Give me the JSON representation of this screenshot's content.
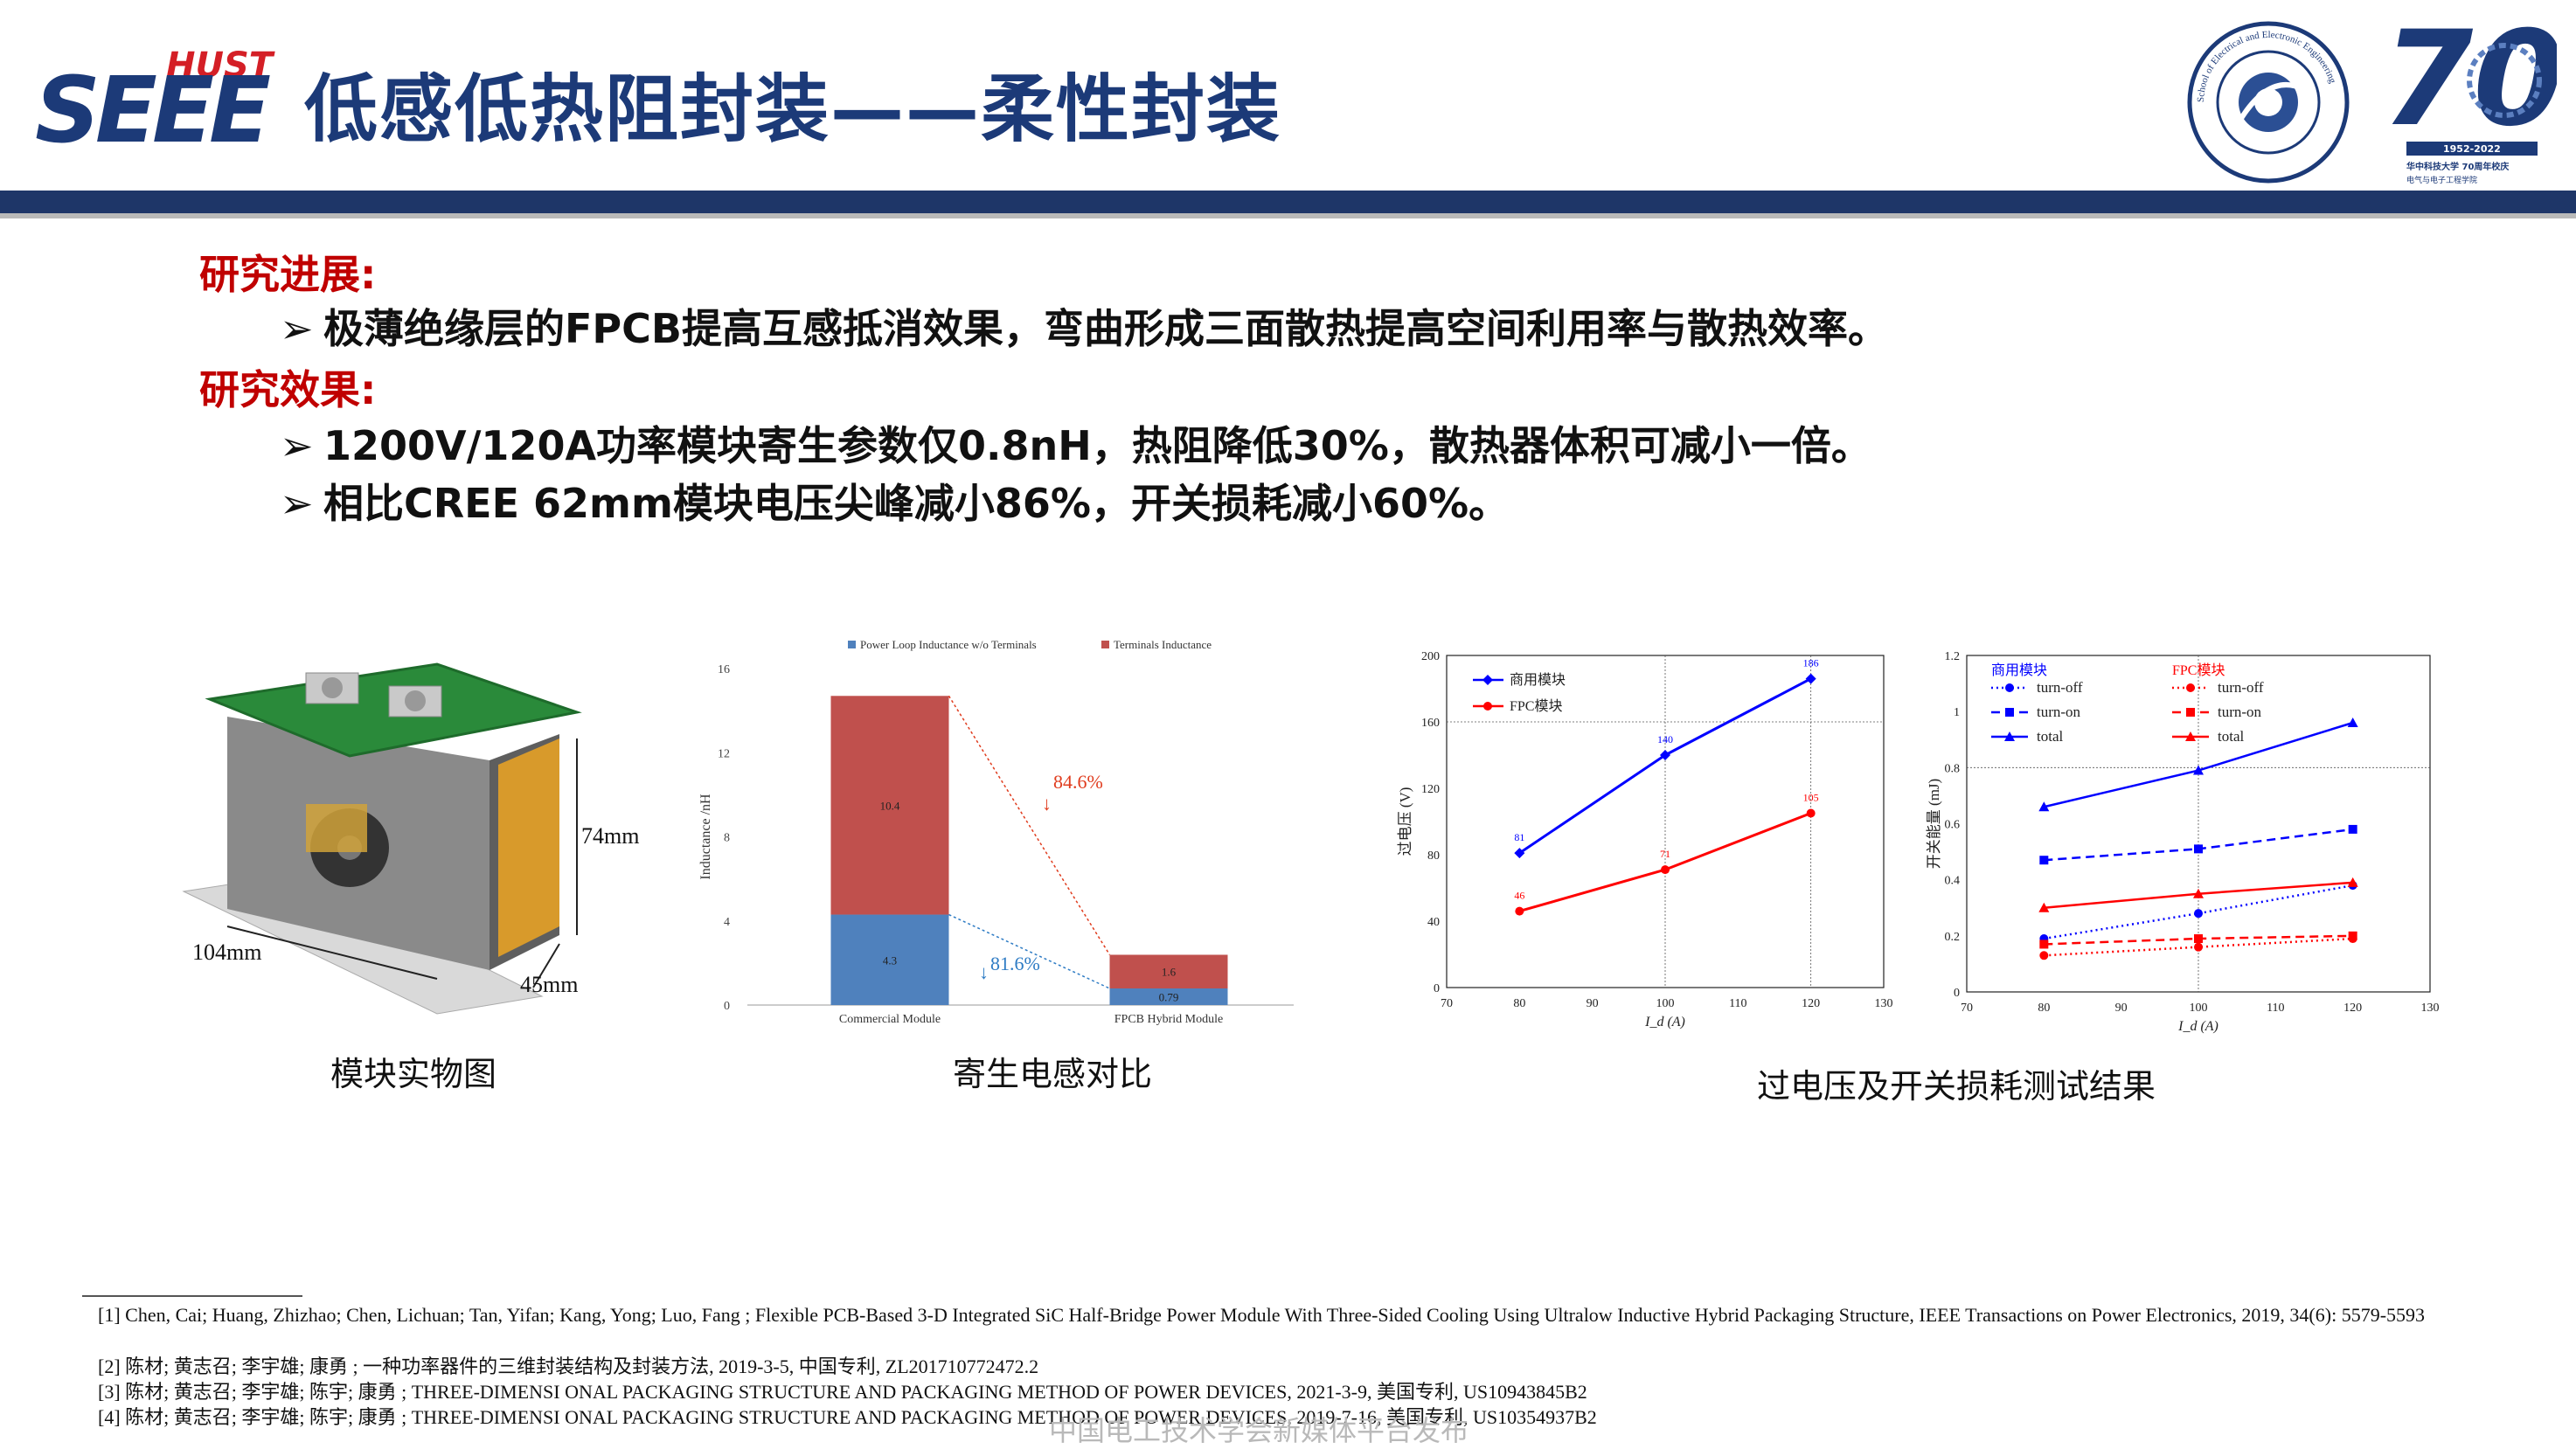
{
  "header": {
    "logo_top": "HUST",
    "logo_main": "SEEE",
    "title": "低感低热阻封装——柔性封装",
    "school_badge_text": "School of Electrical and Electronic Engineering",
    "anniversary_number": "70",
    "anniversary_years": "1952-2022",
    "anniversary_text": "华中科技大学 70周年校庆",
    "anniversary_sub": "电气与电子工程学院",
    "colors": {
      "title": "#1c3a78",
      "band": "#1e3668",
      "section": "#c00000"
    }
  },
  "content": {
    "section1_title": "研究进展:",
    "section1_bullets": [
      "极薄绝缘层的FPCB提高互感抵消效果，弯曲形成三面散热提高空间利用率与散热效率。"
    ],
    "section2_title": "研究效果:",
    "section2_bullets": [
      "1200V/120A功率模块寄生参数仅0.8nH，热阻降低30%，散热器体积可减小一倍。",
      "相比CREE 62mm模块电压尖峰减小86%，开关损耗减小60%。"
    ],
    "bullet_icon": "arrow-bullet-icon"
  },
  "figures": {
    "photo_caption": "模块实物图",
    "photo_dims": {
      "height": "74mm",
      "length": "104mm",
      "width": "45mm"
    },
    "inductance_caption": "寄生电感对比",
    "test_caption": "过电压及开关损耗测试结果"
  },
  "chart_data": [
    {
      "type": "bar",
      "stacked": true,
      "categories": [
        "Commercial Module",
        "FPCB Hybrid Module"
      ],
      "series": [
        {
          "name": "Power Loop Inductance w/o Terminals",
          "values": [
            4.3,
            0.79
          ],
          "color": "#4f81bd"
        },
        {
          "name": "Terminals Inductance",
          "values": [
            10.4,
            1.6
          ],
          "color": "#c0504d"
        }
      ],
      "ylabel": "Inductance /nH",
      "ylim": [
        0,
        16
      ],
      "yticks": [
        0,
        4,
        8,
        12,
        16
      ],
      "legend": "top",
      "annotations": [
        {
          "text": "84.6%",
          "color": "#e03c1e"
        },
        {
          "text": "81.6%",
          "color": "#2d7bc4"
        }
      ]
    },
    {
      "type": "line",
      "x": [
        80,
        100,
        120
      ],
      "series": [
        {
          "name": "商用模块",
          "values": [
            81,
            140,
            186
          ],
          "color": "#0000ff",
          "marker": "diamond"
        },
        {
          "name": "FPC模块",
          "values": [
            46,
            71,
            105
          ],
          "color": "#ff0000",
          "marker": "circle"
        }
      ],
      "xlabel": "I_d (A)",
      "ylabel": "过电压 (V)",
      "xlim": [
        70,
        130
      ],
      "ylim": [
        0,
        200
      ],
      "xticks": [
        70,
        80,
        90,
        100,
        110,
        120,
        130
      ],
      "yticks": [
        0,
        40,
        80,
        120,
        160,
        200
      ],
      "legend": "top-left",
      "grid": true
    },
    {
      "type": "line",
      "x": [
        80,
        100,
        120
      ],
      "legend_groups": [
        "商用模块",
        "FPC模块"
      ],
      "series": [
        {
          "group": "商用模块",
          "name": "turn-off",
          "values": [
            0.19,
            0.28,
            0.38
          ],
          "color": "#0000ff",
          "style": "dotted",
          "marker": "circle"
        },
        {
          "group": "商用模块",
          "name": "turn-on",
          "values": [
            0.47,
            0.51,
            0.58
          ],
          "color": "#0000ff",
          "style": "dashed",
          "marker": "square"
        },
        {
          "group": "商用模块",
          "name": "total",
          "values": [
            0.66,
            0.79,
            0.96
          ],
          "color": "#0000ff",
          "style": "solid",
          "marker": "triangle"
        },
        {
          "group": "FPC模块",
          "name": "turn-off",
          "values": [
            0.13,
            0.16,
            0.19
          ],
          "color": "#ff0000",
          "style": "dotted",
          "marker": "circle"
        },
        {
          "group": "FPC模块",
          "name": "turn-on",
          "values": [
            0.17,
            0.19,
            0.2
          ],
          "color": "#ff0000",
          "style": "dashed",
          "marker": "square"
        },
        {
          "group": "FPC模块",
          "name": "total",
          "values": [
            0.3,
            0.35,
            0.39
          ],
          "color": "#ff0000",
          "style": "solid",
          "marker": "triangle"
        }
      ],
      "xlabel": "I_d (A)",
      "ylabel": "开关能量 (mJ)",
      "xlim": [
        70,
        130
      ],
      "ylim": [
        0,
        1.2
      ],
      "xticks": [
        70,
        80,
        90,
        100,
        110,
        120,
        130
      ],
      "yticks": [
        0,
        0.2,
        0.4,
        0.6,
        0.8,
        1,
        1.2
      ],
      "legend": "top-left",
      "grid": true
    }
  ],
  "references": [
    "[1] Chen, Cai; Huang, Zhizhao; Chen, Lichuan; Tan, Yifan; Kang, Yong; Luo, Fang ; Flexible PCB-Based 3-D Integrated SiC Half-Bridge Power Module With Three-Sided Cooling Using Ultralow Inductive Hybrid Packaging Structure, IEEE Transactions on Power Electronics, 2019, 34(6): 5579-5593",
    "[2] 陈材; 黄志召; 李宇雄; 康勇 ; 一种功率器件的三维封装结构及封装方法, 2019-3-5, 中国专利, ZL201710772472.2",
    "[3] 陈材; 黄志召; 李宇雄; 陈宇; 康勇 ; THREE-DIMENSI ONAL PACKAGING STRUCTURE AND PACKAGING METHOD OF POWER DEVICES, 2021-3-9, 美国专利, US10943845B2",
    "[4] 陈材; 黄志召; 李宇雄; 陈宇; 康勇 ; THREE-DIMENSI ONAL PACKAGING STRUCTURE AND PACKAGING METHOD OF POWER DEVICES, 2019-7-16, 美国专利, US10354937B2"
  ],
  "watermark": "中国电工技术学会新媒体平台发布"
}
